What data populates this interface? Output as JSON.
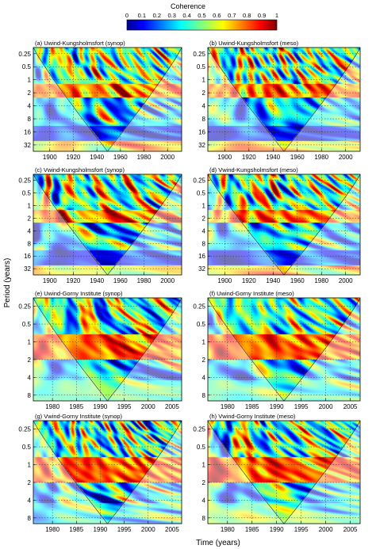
{
  "figure": {
    "colorbar_title": "Coherence",
    "colorbar_ticks": [
      "0",
      "0.1",
      "0.2",
      "0.3",
      "0.4",
      "0.5",
      "0.6",
      "0.7",
      "0.8",
      "0.9",
      "1"
    ],
    "ylabel": "Period (years)",
    "xlabel": "Time (years)"
  },
  "chart_data": [
    {
      "type": "heatmap",
      "title": "(a) Uwind-Kungsholmsfort (synop)",
      "x_ticks": [
        "1900",
        "1920",
        "1940",
        "1960",
        "1980",
        "2000"
      ],
      "x_tick_values": [
        1900,
        1920,
        1940,
        1960,
        1980,
        2000
      ],
      "xlim": [
        1886,
        2012
      ],
      "y_ticks": [
        "0.25",
        "0.5",
        "1",
        "2",
        "4",
        "8",
        "16",
        "32"
      ],
      "y_tick_values": [
        0.25,
        0.5,
        1,
        2,
        4,
        8,
        16,
        32
      ],
      "ylim": [
        0.18,
        45
      ],
      "y_scale": "log2",
      "y_reversed": true,
      "value_range": [
        0,
        1
      ],
      "cone_of_influence": true,
      "seed": 11,
      "pattern": "synop_u"
    },
    {
      "type": "heatmap",
      "title": "(b) Uwind-Kungsholmsfort (meso)",
      "x_ticks": [
        "1900",
        "1920",
        "1940",
        "1960",
        "1980",
        "2000"
      ],
      "x_tick_values": [
        1900,
        1920,
        1940,
        1960,
        1980,
        2000
      ],
      "xlim": [
        1886,
        2012
      ],
      "y_ticks": [
        "0.25",
        "0.5",
        "1",
        "2",
        "4",
        "8",
        "16",
        "32"
      ],
      "y_tick_values": [
        0.25,
        0.5,
        1,
        2,
        4,
        8,
        16,
        32
      ],
      "ylim": [
        0.18,
        45
      ],
      "y_scale": "log2",
      "y_reversed": true,
      "value_range": [
        0,
        1
      ],
      "cone_of_influence": true,
      "seed": 23,
      "pattern": "meso_u"
    },
    {
      "type": "heatmap",
      "title": "(c) Vwind-Kungsholmsfort (synop)",
      "x_ticks": [
        "1900",
        "1920",
        "1940",
        "1960",
        "1980",
        "2000"
      ],
      "x_tick_values": [
        1900,
        1920,
        1940,
        1960,
        1980,
        2000
      ],
      "xlim": [
        1886,
        2012
      ],
      "y_ticks": [
        "0.25",
        "0.5",
        "1",
        "2",
        "4",
        "8",
        "16",
        "32"
      ],
      "y_tick_values": [
        0.25,
        0.5,
        1,
        2,
        4,
        8,
        16,
        32
      ],
      "ylim": [
        0.18,
        45
      ],
      "y_scale": "log2",
      "y_reversed": true,
      "value_range": [
        0,
        1
      ],
      "cone_of_influence": true,
      "seed": 37,
      "pattern": "synop_v"
    },
    {
      "type": "heatmap",
      "title": "(d) Vwind-Kungsholmsfort (meso)",
      "x_ticks": [
        "1900",
        "1920",
        "1940",
        "1960",
        "1980",
        "2000"
      ],
      "x_tick_values": [
        1900,
        1920,
        1940,
        1960,
        1980,
        2000
      ],
      "xlim": [
        1886,
        2012
      ],
      "y_ticks": [
        "0.25",
        "0.5",
        "1",
        "2",
        "4",
        "8",
        "16",
        "32"
      ],
      "y_tick_values": [
        0.25,
        0.5,
        1,
        2,
        4,
        8,
        16,
        32
      ],
      "ylim": [
        0.18,
        45
      ],
      "y_scale": "log2",
      "y_reversed": true,
      "value_range": [
        0,
        1
      ],
      "cone_of_influence": true,
      "seed": 41,
      "pattern": "meso_v"
    },
    {
      "type": "heatmap",
      "title": "(e) Uwind-Gorny Institute (synop)",
      "x_ticks": [
        "1980",
        "1985",
        "1990",
        "1995",
        "2000",
        "2005"
      ],
      "x_tick_values": [
        1980,
        1985,
        1990,
        1995,
        2000,
        2005
      ],
      "xlim": [
        1976,
        2007
      ],
      "y_ticks": [
        "0.25",
        "0.5",
        "1",
        "2",
        "4",
        "8"
      ],
      "y_tick_values": [
        0.25,
        0.5,
        1,
        2,
        4,
        8
      ],
      "ylim": [
        0.18,
        10
      ],
      "y_scale": "log2",
      "y_reversed": true,
      "value_range": [
        0,
        1
      ],
      "cone_of_influence": true,
      "seed": 53,
      "pattern": "gorny_u"
    },
    {
      "type": "heatmap",
      "title": "(f) Uwind-Gorny Institute (meso)",
      "x_ticks": [
        "1980",
        "1985",
        "1990",
        "1995",
        "2000",
        "2005"
      ],
      "x_tick_values": [
        1980,
        1985,
        1990,
        1995,
        2000,
        2005
      ],
      "xlim": [
        1976,
        2007
      ],
      "y_ticks": [
        "0.25",
        "0.5",
        "1",
        "2",
        "4",
        "8"
      ],
      "y_tick_values": [
        0.25,
        0.5,
        1,
        2,
        4,
        8
      ],
      "ylim": [
        0.18,
        10
      ],
      "y_scale": "log2",
      "y_reversed": true,
      "value_range": [
        0,
        1
      ],
      "cone_of_influence": true,
      "seed": 67,
      "pattern": "gorny_u_meso"
    },
    {
      "type": "heatmap",
      "title": "(g) Vwind-Gorny Institute (synop)",
      "x_ticks": [
        "1980",
        "1985",
        "1990",
        "1995",
        "2000",
        "2005"
      ],
      "x_tick_values": [
        1980,
        1985,
        1990,
        1995,
        2000,
        2005
      ],
      "xlim": [
        1976,
        2007
      ],
      "y_ticks": [
        "0.25",
        "0.5",
        "1",
        "2",
        "4",
        "8"
      ],
      "y_tick_values": [
        0.25,
        0.5,
        1,
        2,
        4,
        8
      ],
      "ylim": [
        0.18,
        10
      ],
      "y_scale": "log2",
      "y_reversed": true,
      "value_range": [
        0,
        1
      ],
      "cone_of_influence": true,
      "seed": 79,
      "pattern": "gorny_v"
    },
    {
      "type": "heatmap",
      "title": "(h) Vwind-Gorny Institute (meso)",
      "x_ticks": [
        "1980",
        "1985",
        "1990",
        "1995",
        "2000",
        "2005"
      ],
      "x_tick_values": [
        1980,
        1985,
        1990,
        1995,
        2000,
        2005
      ],
      "xlim": [
        1976,
        2007
      ],
      "y_ticks": [
        "0.25",
        "0.5",
        "1",
        "2",
        "4",
        "8"
      ],
      "y_tick_values": [
        0.25,
        0.5,
        1,
        2,
        4,
        8
      ],
      "ylim": [
        0.18,
        10
      ],
      "y_scale": "log2",
      "y_reversed": true,
      "value_range": [
        0,
        1
      ],
      "cone_of_influence": true,
      "seed": 83,
      "pattern": "gorny_v_meso"
    }
  ]
}
